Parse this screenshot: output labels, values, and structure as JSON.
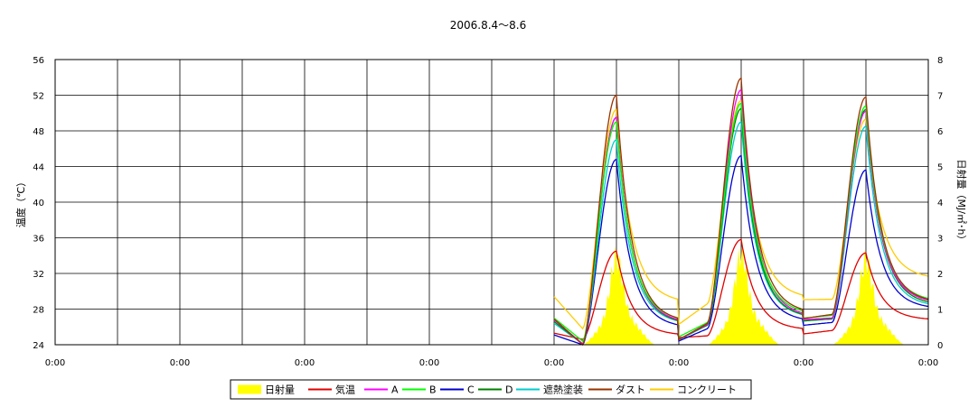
{
  "chart_data": {
    "type": "line",
    "title": "2006.8.4～8.6",
    "ylabel": "温度（℃）",
    "y2label": "日射量（MJ/㎡･h）",
    "ylim": [
      24,
      56
    ],
    "y2lim": [
      0,
      8
    ],
    "yticks": [
      "56",
      "52",
      "48",
      "44",
      "40",
      "36",
      "32",
      "28",
      "24"
    ],
    "y2ticks": [
      "8",
      "7",
      "6",
      "5",
      "4",
      "3",
      "2",
      "1",
      "0"
    ],
    "x_labels": [
      "0:00",
      "0:00",
      "0:00",
      "0:00",
      "0:00",
      "0:00",
      "0:00",
      "0:00"
    ],
    "x_total_hours": 168,
    "x_data_start_hour": 96,
    "grid": true,
    "legend_position": "bottom",
    "legend": [
      "日射量",
      "気温",
      "A",
      "B",
      "C",
      "D",
      "遮熱塗装",
      "ダスト",
      "コンクリート"
    ],
    "colors": {
      "日射量": "#ffff00",
      "気温": "#e00000",
      "A": "#ff00ff",
      "B": "#00ff00",
      "C": "#0000cc",
      "D": "#008000",
      "遮熱塗装": "#00cccc",
      "ダスト": "#993300",
      "コンクリート": "#ffcc00"
    },
    "solar_peaks_MJ": [
      2.9,
      3.0,
      2.8
    ],
    "series_daily": [
      {
        "name": "気温",
        "axis": "left",
        "start": 25.3,
        "end": 26.9,
        "days": [
          {
            "min": 24.6,
            "max": 34.5
          },
          {
            "min": 25.0,
            "max": 35.8
          },
          {
            "min": 25.6,
            "max": 34.3
          }
        ]
      },
      {
        "name": "A",
        "axis": "left",
        "start": 26.8,
        "end": 29.0,
        "days": [
          {
            "min": 24.1,
            "max": 49.5
          },
          {
            "min": 26.3,
            "max": 52.6
          },
          {
            "min": 27.0,
            "max": 50.2
          }
        ]
      },
      {
        "name": "B",
        "axis": "left",
        "start": 27.0,
        "end": 29.2,
        "days": [
          {
            "min": 24.4,
            "max": 49.0
          },
          {
            "min": 26.5,
            "max": 51.1
          },
          {
            "min": 27.3,
            "max": 50.8
          }
        ]
      },
      {
        "name": "C",
        "axis": "left",
        "start": 25.1,
        "end": 28.3,
        "days": [
          {
            "min": 24.0,
            "max": 44.8
          },
          {
            "min": 25.8,
            "max": 45.2
          },
          {
            "min": 26.5,
            "max": 43.6
          }
        ]
      },
      {
        "name": "D",
        "axis": "left",
        "start": 26.6,
        "end": 28.8,
        "days": [
          {
            "min": 24.1,
            "max": 49.5
          },
          {
            "min": 26.2,
            "max": 50.5
          },
          {
            "min": 26.9,
            "max": 50.4
          }
        ]
      },
      {
        "name": "遮熱塗装",
        "axis": "left",
        "start": 26.4,
        "end": 28.6,
        "days": [
          {
            "min": 24.1,
            "max": 47.0
          },
          {
            "min": 26.2,
            "max": 49.0
          },
          {
            "min": 26.9,
            "max": 48.5
          }
        ]
      },
      {
        "name": "ダスト",
        "axis": "left",
        "start": 26.9,
        "end": 29.1,
        "days": [
          {
            "min": 24.0,
            "max": 52.0
          },
          {
            "min": 26.4,
            "max": 53.9
          },
          {
            "min": 27.4,
            "max": 51.8
          }
        ]
      },
      {
        "name": "コンクリート",
        "axis": "left",
        "start": 29.4,
        "end": 31.7,
        "days": [
          {
            "min": 25.8,
            "max": 50.4
          },
          {
            "min": 28.6,
            "max": 51.4
          },
          {
            "min": 29.1,
            "max": 49.3
          }
        ]
      }
    ]
  }
}
